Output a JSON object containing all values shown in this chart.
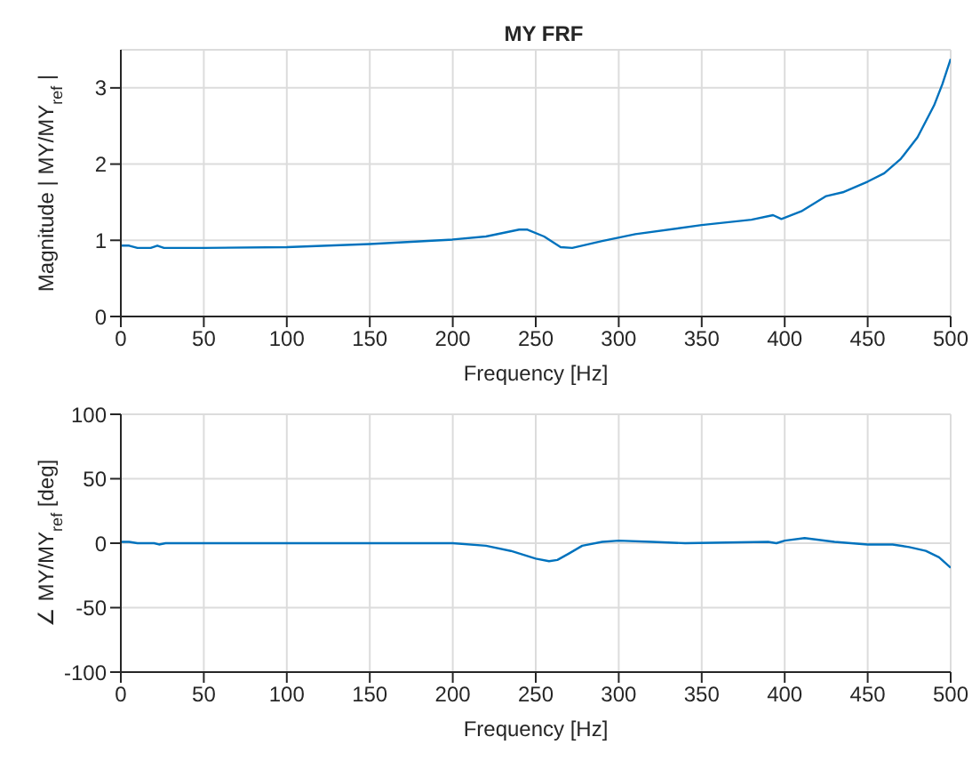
{
  "chart_data": [
    {
      "type": "line",
      "title": "MY FRF",
      "xlabel": "Frequency [Hz]",
      "ylabel": "Magnitude | MY/MY$_{ref}$ |",
      "color": "#0072bd",
      "x": [
        0,
        5,
        10,
        18,
        22,
        26,
        50,
        100,
        150,
        200,
        220,
        240,
        245,
        255,
        265,
        272,
        290,
        310,
        350,
        380,
        393,
        398,
        410,
        425,
        435,
        450,
        460,
        470,
        480,
        490,
        495,
        500
      ],
      "values": [
        0.93,
        0.93,
        0.9,
        0.9,
        0.93,
        0.9,
        0.9,
        0.91,
        0.95,
        1.01,
        1.05,
        1.14,
        1.14,
        1.05,
        0.91,
        0.9,
        0.99,
        1.08,
        1.2,
        1.27,
        1.33,
        1.28,
        1.38,
        1.58,
        1.63,
        1.77,
        1.88,
        2.07,
        2.35,
        2.77,
        3.05,
        3.38
      ],
      "xlim": [
        0,
        500
      ],
      "xticks": [
        0,
        50,
        100,
        150,
        200,
        250,
        300,
        350,
        400,
        450,
        500
      ],
      "ylim": [
        0,
        3.5
      ],
      "yticks": [
        0,
        1,
        2,
        3
      ],
      "grid": true,
      "line_style": "solid"
    },
    {
      "type": "line",
      "xlabel": "Frequency [Hz]",
      "ylabel": "∠ MY/MY$_{ref}$  [deg]",
      "color": "#0072bd",
      "x": [
        0,
        5,
        10,
        20,
        23,
        27,
        100,
        200,
        220,
        235,
        250,
        258,
        263,
        270,
        278,
        290,
        300,
        320,
        340,
        390,
        395,
        400,
        412,
        430,
        450,
        465,
        475,
        485,
        493,
        500
      ],
      "values": [
        1,
        1,
        0,
        0,
        -1,
        0,
        0,
        0,
        -2,
        -6,
        -12,
        -14,
        -13,
        -8,
        -2,
        1,
        2,
        1,
        0,
        1,
        0,
        2,
        4,
        1,
        -1,
        -1,
        -3,
        -6,
        -11,
        -19
      ],
      "xlim": [
        0,
        500
      ],
      "xticks": [
        0,
        50,
        100,
        150,
        200,
        250,
        300,
        350,
        400,
        450,
        500
      ],
      "ylim": [
        -100,
        100
      ],
      "yticks": [
        -100,
        -50,
        0,
        50,
        100
      ],
      "grid": true,
      "line_style": "solid"
    }
  ]
}
